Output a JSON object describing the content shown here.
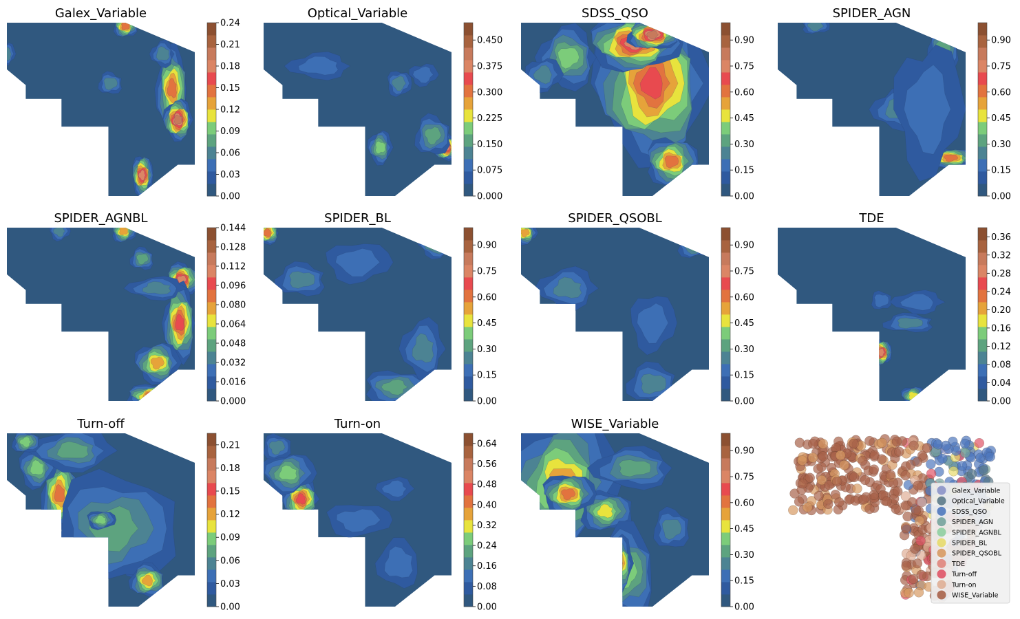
{
  "palette": [
    "#30587f",
    "#2f5a9f",
    "#3d6fb5",
    "#4c8393",
    "#5da37f",
    "#7ccc7a",
    "#e8e33d",
    "#e6a33a",
    "#e2733f",
    "#e84a4f",
    "#db8565",
    "#c77a5c",
    "#a8633f",
    "#8c5031"
  ],
  "chart_data": [
    {
      "type": "heatmap",
      "title": "Galex_Variable",
      "colorbar": {
        "min": 0,
        "max": 0.24,
        "ticks": [
          "0.00",
          "0.03",
          "0.06",
          "0.09",
          "0.12",
          "0.15",
          "0.18",
          "0.21",
          "0.24"
        ]
      }
    },
    {
      "type": "heatmap",
      "title": "Optical_Variable",
      "colorbar": {
        "min": 0,
        "max": 0.5,
        "ticks": [
          "0.000",
          "0.075",
          "0.150",
          "0.225",
          "0.300",
          "0.375",
          "0.450"
        ]
      }
    },
    {
      "type": "heatmap",
      "title": "SDSS_QSO",
      "colorbar": {
        "min": 0,
        "max": 1.0,
        "ticks": [
          "0.00",
          "0.15",
          "0.30",
          "0.45",
          "0.60",
          "0.75",
          "0.90"
        ]
      }
    },
    {
      "type": "heatmap",
      "title": "SPIDER_AGN",
      "colorbar": {
        "min": 0,
        "max": 1.0,
        "ticks": [
          "0.00",
          "0.15",
          "0.30",
          "0.45",
          "0.60",
          "0.75",
          "0.90"
        ]
      }
    },
    {
      "type": "heatmap",
      "title": "SPIDER_AGNBL",
      "colorbar": {
        "min": 0,
        "max": 0.144,
        "ticks": [
          "0.000",
          "0.016",
          "0.032",
          "0.048",
          "0.064",
          "0.080",
          "0.096",
          "0.112",
          "0.128",
          "0.144"
        ]
      }
    },
    {
      "type": "heatmap",
      "title": "SPIDER_BL",
      "colorbar": {
        "min": 0,
        "max": 1.0,
        "ticks": [
          "0.00",
          "0.15",
          "0.30",
          "0.45",
          "0.60",
          "0.75",
          "0.90"
        ]
      }
    },
    {
      "type": "heatmap",
      "title": "SPIDER_QSOBL",
      "colorbar": {
        "min": 0,
        "max": 1.0,
        "ticks": [
          "0.00",
          "0.15",
          "0.30",
          "0.45",
          "0.60",
          "0.75",
          "0.90"
        ]
      }
    },
    {
      "type": "heatmap",
      "title": "TDE",
      "colorbar": {
        "min": 0,
        "max": 0.38,
        "ticks": [
          "0.00",
          "0.04",
          "0.08",
          "0.12",
          "0.16",
          "0.20",
          "0.24",
          "0.28",
          "0.32",
          "0.36"
        ]
      }
    },
    {
      "type": "heatmap",
      "title": "Turn-off",
      "colorbar": {
        "min": 0,
        "max": 0.225,
        "ticks": [
          "0.00",
          "0.03",
          "0.06",
          "0.09",
          "0.12",
          "0.15",
          "0.18",
          "0.21"
        ]
      }
    },
    {
      "type": "heatmap",
      "title": "Turn-on",
      "colorbar": {
        "min": 0,
        "max": 0.68,
        "ticks": [
          "0.00",
          "0.08",
          "0.16",
          "0.24",
          "0.32",
          "0.40",
          "0.48",
          "0.56",
          "0.64"
        ]
      }
    },
    {
      "type": "heatmap",
      "title": "WISE_Variable",
      "colorbar": {
        "min": 0,
        "max": 1.0,
        "ticks": [
          "0.00",
          "0.15",
          "0.30",
          "0.45",
          "0.60",
          "0.75",
          "0.90"
        ]
      }
    },
    {
      "type": "scatter",
      "title": "",
      "legend_position": "lower right",
      "legend": [
        {
          "label": "Galex_Variable",
          "color": "#8b93c8"
        },
        {
          "label": "Optical_Variable",
          "color": "#5b7a8a"
        },
        {
          "label": "SDSS_QSO",
          "color": "#4f78bd"
        },
        {
          "label": "SPIDER_AGN",
          "color": "#76a39c"
        },
        {
          "label": "SPIDER_AGNBL",
          "color": "#8fcfa1"
        },
        {
          "label": "SPIDER_BL",
          "color": "#e7da6b"
        },
        {
          "label": "SPIDER_QSOBL",
          "color": "#d79a63"
        },
        {
          "label": "TDE",
          "color": "#e0857c"
        },
        {
          "label": "Turn-off",
          "color": "#e05466"
        },
        {
          "label": "Turn-on",
          "color": "#dfae95"
        },
        {
          "label": "WISE_Variable",
          "color": "#a8624a"
        }
      ]
    }
  ]
}
